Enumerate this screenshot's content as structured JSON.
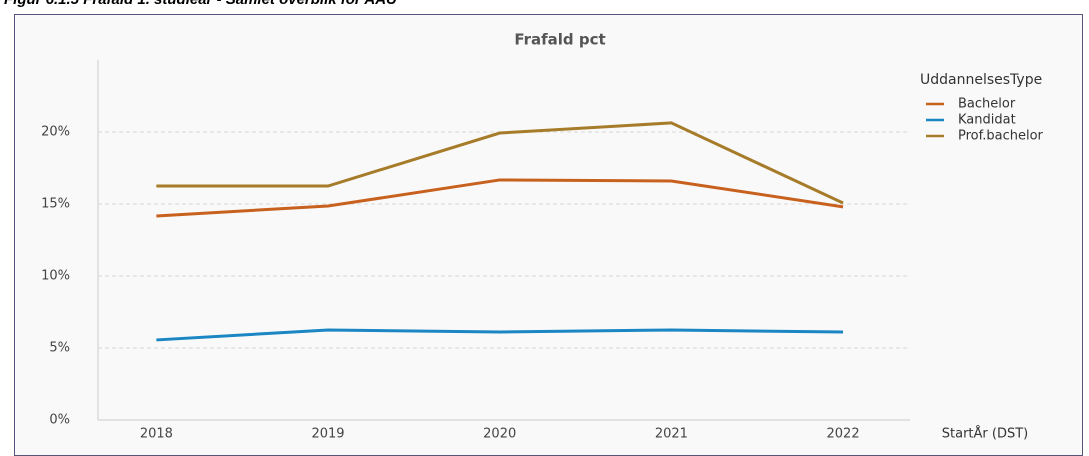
{
  "heading": "Figur 6.1.5 Frafald 1. studieår - Samlet overblik for AAU",
  "chart_data": {
    "type": "line",
    "title": "Frafald pct",
    "x": [
      2018,
      2019,
      2020,
      2021,
      2022
    ],
    "xlim": [
      2017.66,
      2022.39
    ],
    "xticks": [
      2018,
      2019,
      2020,
      2021,
      2022
    ],
    "xlabel": "StartÅr (DST)",
    "ylim": [
      0,
      25
    ],
    "yticks": [
      {
        "value": 0,
        "label": "0%"
      },
      {
        "value": 5,
        "label": "5%"
      },
      {
        "value": 10,
        "label": "10%"
      },
      {
        "value": 15,
        "label": "15%"
      },
      {
        "value": 20,
        "label": "20%"
      }
    ],
    "grid": true,
    "legend_title": "UddannelsesType",
    "legend": "right",
    "series": [
      {
        "name": "Bachelor",
        "color": "#c8611e",
        "values": [
          14.17,
          14.86,
          16.67,
          16.6,
          14.8
        ]
      },
      {
        "name": "Kandidat",
        "color": "#1a86c3",
        "values": [
          5.56,
          6.25,
          6.11,
          6.25,
          6.11
        ]
      },
      {
        "name": "Prof.bachelor",
        "color": "#a67c2a",
        "values": [
          16.25,
          16.25,
          19.93,
          20.63,
          15.07
        ]
      }
    ]
  }
}
